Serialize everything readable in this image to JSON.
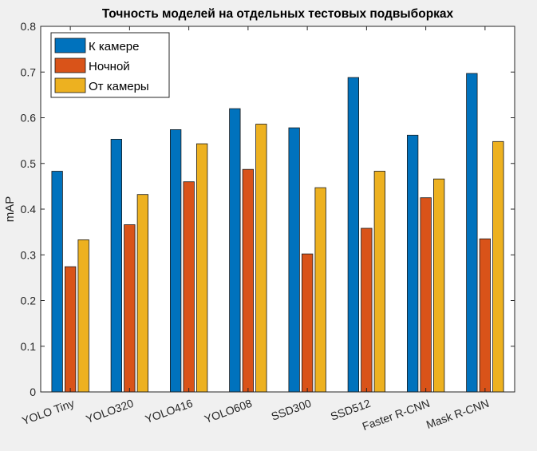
{
  "chart_data": {
    "type": "bar",
    "title": "Точность моделей на отдельных тестовых подвыборках",
    "xlabel": "",
    "ylabel": "mAP",
    "ylim": [
      0,
      0.8
    ],
    "yticks": [
      "0",
      "0.1",
      "0.2",
      "0.3",
      "0.4",
      "0.5",
      "0.6",
      "0.7",
      "0.8"
    ],
    "categories": [
      "YOLO Tiny",
      "YOLO320",
      "YOLO416",
      "YOLO608",
      "SSD300",
      "SSD512",
      "Faster R-CNN",
      "Mask R-CNN"
    ],
    "series": [
      {
        "name": "К камере",
        "color": "#0072bd",
        "values": [
          0.483,
          0.553,
          0.574,
          0.62,
          0.578,
          0.688,
          0.562,
          0.697
        ]
      },
      {
        "name": "Ночной",
        "color": "#d95319",
        "values": [
          0.274,
          0.366,
          0.46,
          0.487,
          0.302,
          0.358,
          0.425,
          0.335
        ]
      },
      {
        "name": "От камеры",
        "color": "#edb120",
        "values": [
          0.333,
          0.432,
          0.543,
          0.586,
          0.447,
          0.483,
          0.466,
          0.548
        ]
      }
    ],
    "legend_position": "top-left",
    "grid": false
  }
}
